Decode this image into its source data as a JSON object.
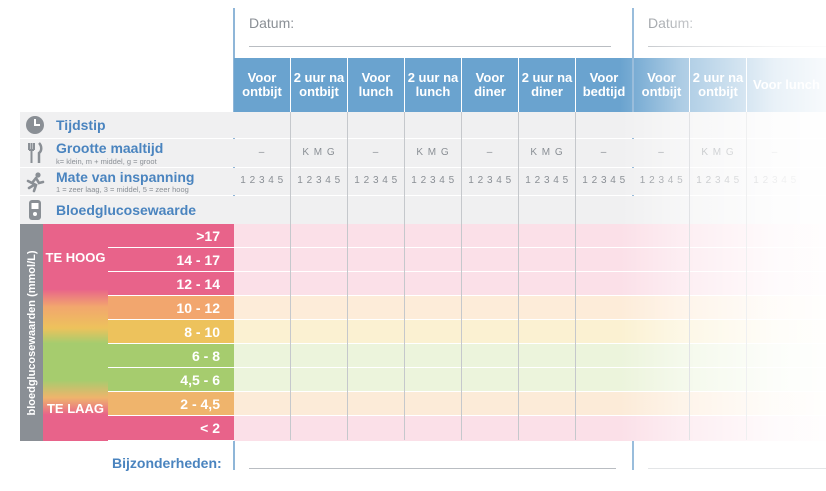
{
  "header": {
    "datum_label_1": "Datum:",
    "datum_label_2": "Datum:"
  },
  "columns": [
    {
      "label": "Voor ontbijt"
    },
    {
      "label": "2 uur na ontbijt"
    },
    {
      "label": "Voor lunch"
    },
    {
      "label": "2 uur na lunch"
    },
    {
      "label": "Voor diner"
    },
    {
      "label": "2 uur na diner"
    },
    {
      "label": "Voor bedtijd"
    },
    {
      "label": "Voor ontbijt"
    },
    {
      "label": "2 uur na ontbijt"
    },
    {
      "label": "Voor lunch"
    }
  ],
  "rows": {
    "tijdstip": {
      "title": "Tijdstip",
      "icon": "clock-icon"
    },
    "maaltijd": {
      "title": "Grootte maaltijd",
      "subtitle": "k= klein, m + middel, g = groot",
      "icon": "fork-knife-icon",
      "dash": "–",
      "kmg": "K M G"
    },
    "inspanning": {
      "title": "Mate van inspanning",
      "subtitle": "1 = zeer laag, 3 = middel, 5 = zeer hoog",
      "icon": "runner-icon",
      "scale": "1 2 3 4 5"
    },
    "bloedglucose": {
      "title": "Bloedglucosewaarde",
      "icon": "glucose-meter-icon"
    }
  },
  "glucose": {
    "axis_label": "bloedglucosewaarden (mmol/L)",
    "zone_high": "TE HOOG",
    "zone_low": "TE LAAG",
    "bands": [
      {
        "label": ">17",
        "color": "#e8638a"
      },
      {
        "label": "14 - 17",
        "color": "#e8638a"
      },
      {
        "label": "12 - 14",
        "color": "#e8638a"
      },
      {
        "label": "10 - 12",
        "color": "#f2a66e"
      },
      {
        "label": "8 - 10",
        "color": "#edc25c"
      },
      {
        "label": "6 - 8",
        "color": "#a6cc6e"
      },
      {
        "label": "4,5 - 6",
        "color": "#a6cc6e"
      },
      {
        "label": "2 - 4,5",
        "color": "#efb46c"
      },
      {
        "label": "< 2",
        "color": "#e8638a"
      }
    ]
  },
  "footer": {
    "bijzonderheden_label": "Bijzonderheden:"
  },
  "colors": {
    "header_blue": "#6aa3cf",
    "title_blue": "#4a84bf",
    "row_grey": "#f0f0f1"
  }
}
